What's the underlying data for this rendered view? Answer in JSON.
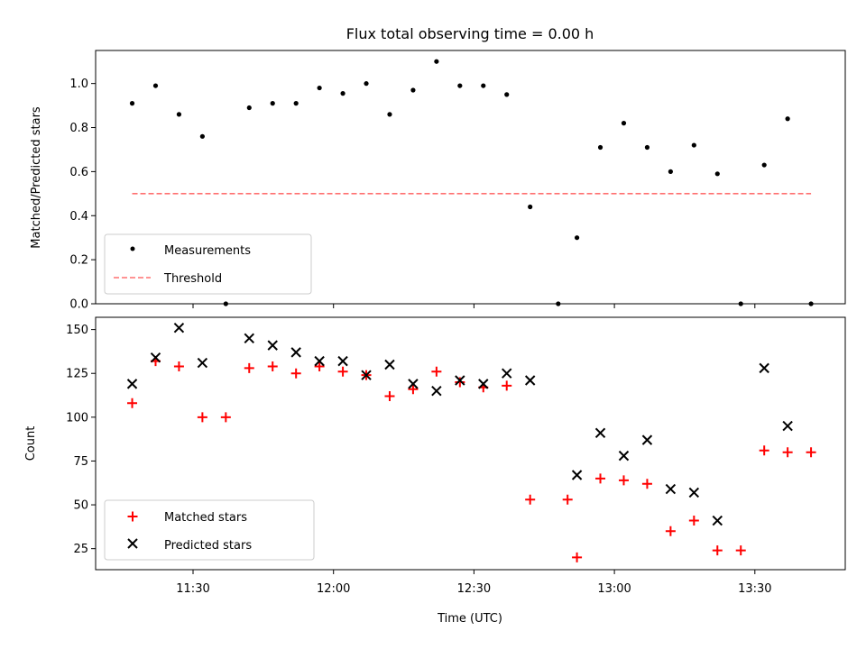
{
  "chart_data": [
    {
      "type": "scatter",
      "title": "Flux total observing time = 0.00 h",
      "xlabel": "",
      "ylabel": "Matched/Predicted stars",
      "ylim": [
        0,
        1.15
      ],
      "yticks": [
        "0.0",
        "0.2",
        "0.4",
        "0.6",
        "0.8",
        "1.0"
      ],
      "legend_position": "lower-left",
      "series": [
        {
          "name": "Measurements",
          "marker": "dot",
          "color": "#000000",
          "x": [
            "11:17",
            "11:22",
            "11:27",
            "11:32",
            "11:37",
            "11:42",
            "11:47",
            "11:52",
            "11:57",
            "12:02",
            "12:07",
            "12:12",
            "12:17",
            "12:22",
            "12:27",
            "12:32",
            "12:37",
            "12:42",
            "12:48",
            "12:52",
            "12:57",
            "13:02",
            "13:07",
            "13:12",
            "13:17",
            "13:22",
            "13:27",
            "13:32",
            "13:37",
            "13:42"
          ],
          "y": [
            0.91,
            0.99,
            0.86,
            0.76,
            0.0,
            0.89,
            0.91,
            0.91,
            0.98,
            0.955,
            1.0,
            0.86,
            0.97,
            1.1,
            0.99,
            0.99,
            0.95,
            0.44,
            0.0,
            0.3,
            0.71,
            0.82,
            0.71,
            0.6,
            0.72,
            0.59,
            0.0,
            0.63,
            0.84,
            0.0
          ]
        },
        {
          "name": "Threshold",
          "marker": "dashed-line",
          "color": "#ff7070",
          "x": [
            "11:17",
            "13:42"
          ],
          "y": [
            0.5,
            0.5
          ]
        }
      ]
    },
    {
      "type": "scatter",
      "title": "",
      "xlabel": "Time (UTC)",
      "ylabel": "Count",
      "ylim": [
        13,
        157
      ],
      "yticks": [
        "25",
        "50",
        "75",
        "100",
        "125",
        "150"
      ],
      "xticks": [
        "11:30",
        "12:00",
        "12:30",
        "13:00",
        "13:30"
      ],
      "legend_position": "lower-left",
      "series": [
        {
          "name": "Matched stars",
          "marker": "plus",
          "color": "#ff0000",
          "x": [
            "11:17",
            "11:22",
            "11:27",
            "11:32",
            "11:37",
            "11:42",
            "11:47",
            "11:52",
            "11:57",
            "12:02",
            "12:07",
            "12:12",
            "12:17",
            "12:22",
            "12:27",
            "12:32",
            "12:37",
            "12:42",
            "12:50",
            "12:52",
            "12:57",
            "13:02",
            "13:07",
            "13:12",
            "13:17",
            "13:22",
            "13:27",
            "13:32",
            "13:37",
            "13:42"
          ],
          "y": [
            108,
            132,
            129,
            100,
            100,
            128,
            129,
            125,
            129,
            126,
            124,
            112,
            116,
            126,
            120,
            117,
            118,
            53,
            53,
            20,
            65,
            64,
            62,
            35,
            41,
            24,
            24,
            81,
            80,
            80
          ]
        },
        {
          "name": "Predicted stars",
          "marker": "x",
          "color": "#000000",
          "x": [
            "11:17",
            "11:22",
            "11:27",
            "11:32",
            "11:42",
            "11:47",
            "11:52",
            "11:57",
            "12:02",
            "12:07",
            "12:12",
            "12:17",
            "12:22",
            "12:27",
            "12:32",
            "12:37",
            "12:42",
            "12:52",
            "12:57",
            "13:02",
            "13:07",
            "13:12",
            "13:17",
            "13:22",
            "13:32",
            "13:37"
          ],
          "y": [
            119,
            134,
            151,
            131,
            145,
            141,
            137,
            132,
            132,
            124,
            130,
            119,
            115,
            121,
            119,
            125,
            121,
            67,
            91,
            78,
            87,
            59,
            57,
            41,
            128,
            95
          ]
        }
      ]
    }
  ]
}
